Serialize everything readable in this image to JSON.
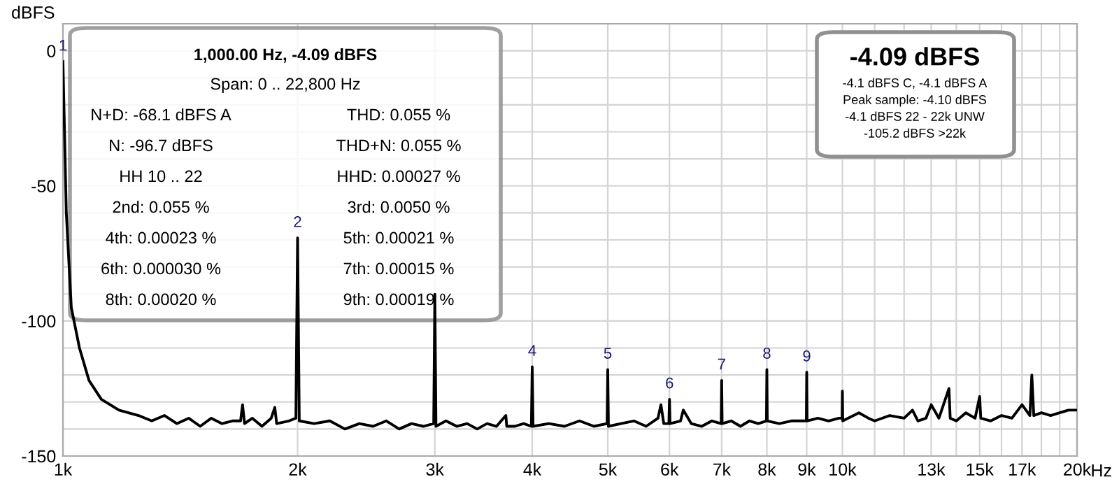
{
  "chart_data": {
    "type": "line",
    "ylabel": "dBFS",
    "x": [
      1000,
      1010,
      1025,
      1050,
      1080,
      1120,
      1180,
      1250,
      1300,
      1350,
      1400,
      1450,
      1500,
      1550,
      1600,
      1650,
      1690,
      1700,
      1710,
      1750,
      1800,
      1850,
      1870,
      1880,
      1950,
      1990,
      2000,
      2010,
      2100,
      2200,
      2300,
      2400,
      2500,
      2600,
      2700,
      2800,
      2900,
      2990,
      3000,
      3010,
      3100,
      3200,
      3300,
      3400,
      3500,
      3600,
      3700,
      3710,
      3800,
      3900,
      3990,
      4000,
      4010,
      4200,
      4400,
      4600,
      4800,
      4990,
      5000,
      5010,
      5200,
      5400,
      5600,
      5800,
      5850,
      5900,
      5990,
      6000,
      6010,
      6200,
      6250,
      6400,
      6600,
      6800,
      6990,
      7000,
      7010,
      7200,
      7400,
      7600,
      7800,
      7990,
      8000,
      8010,
      8300,
      8600,
      8990,
      9000,
      9010,
      9300,
      9600,
      9900,
      9990,
      10000,
      10010,
      10500,
      10800,
      11000,
      11500,
      12000,
      12300,
      12500,
      12800,
      13000,
      13300,
      13700,
      13750,
      14000,
      14400,
      14800,
      15000,
      15050,
      15500,
      16000,
      16500,
      17000,
      17400,
      17500,
      17600,
      18000,
      18500,
      19000,
      19500,
      20000
    ],
    "series": [
      {
        "color": "#000000",
        "values": [
          -4,
          -60,
          -95,
          -110,
          -122,
          -129,
          -133,
          -135,
          -137,
          -135,
          -138,
          -136,
          -139,
          -136,
          -138,
          -137,
          -137,
          -131,
          -138,
          -136,
          -139,
          -136,
          -132,
          -138,
          -137,
          -136,
          -69.3,
          -137,
          -138,
          -137,
          -140,
          -138,
          -139,
          -137,
          -140,
          -138,
          -139,
          -138,
          -90.1,
          -139,
          -137,
          -139,
          -138,
          -140,
          -138,
          -139,
          -135,
          -139,
          -139,
          -138,
          -139,
          -117,
          -139,
          -138,
          -139,
          -137,
          -139,
          -138,
          -118,
          -139,
          -138,
          -137,
          -139,
          -136,
          -131,
          -138,
          -138,
          -129,
          -138,
          -137,
          -133,
          -138,
          -139,
          -137,
          -138,
          -122,
          -138,
          -137,
          -139,
          -137,
          -138,
          -137,
          -118,
          -137,
          -138,
          -137,
          -137,
          -119,
          -137,
          -136,
          -137,
          -136,
          -136,
          -126,
          -137,
          -134,
          -136,
          -137,
          -135,
          -136,
          -133,
          -137,
          -136,
          -131,
          -136,
          -125,
          -136,
          -137,
          -134,
          -136,
          -128,
          -136,
          -137,
          -135,
          -136,
          -131,
          -135,
          -120,
          -135,
          -134,
          -135,
          -134,
          -133,
          -133
        ]
      }
    ],
    "xlim": [
      1000,
      20000
    ],
    "ylim": [
      -150,
      10
    ],
    "log": "x",
    "xticks": [
      {
        "value": 1000,
        "label": "1k"
      },
      {
        "value": 2000,
        "label": "2k"
      },
      {
        "value": 3000,
        "label": "3k"
      },
      {
        "value": 4000,
        "label": "4k"
      },
      {
        "value": 5000,
        "label": "5k"
      },
      {
        "value": 6000,
        "label": "6k"
      },
      {
        "value": 7000,
        "label": "7k"
      },
      {
        "value": 8000,
        "label": "8k"
      },
      {
        "value": 9000,
        "label": "9k"
      },
      {
        "value": 10000,
        "label": "10k"
      },
      {
        "value": 11000,
        "label": null
      },
      {
        "value": 12000,
        "label": null
      },
      {
        "value": 13000,
        "label": "13k"
      },
      {
        "value": 14000,
        "label": null
      },
      {
        "value": 15000,
        "label": "15k"
      },
      {
        "value": 16000,
        "label": null
      },
      {
        "value": 17000,
        "label": "17k"
      },
      {
        "value": 18000,
        "label": null
      },
      {
        "value": 19000,
        "label": null
      },
      {
        "value": 20000,
        "label": "20k"
      }
    ],
    "xlabel": "Hz",
    "yticks": [
      -150,
      {
        "value": -140,
        "label": null
      },
      {
        "value": -130,
        "label": null
      },
      {
        "value": -120,
        "label": null
      },
      {
        "value": -110,
        "label": null
      },
      -100,
      {
        "value": -90,
        "label": null
      },
      {
        "value": -80,
        "label": null
      },
      {
        "value": -70,
        "label": null
      },
      {
        "value": -60,
        "label": null
      },
      -50,
      {
        "value": -40,
        "label": null
      },
      {
        "value": -30,
        "label": null
      },
      {
        "value": -20,
        "label": null
      },
      {
        "value": -10,
        "label": null
      },
      0
    ],
    "grid": true,
    "annotations": [
      "1,000.00 Hz, -4.09 dBFS",
      "Span: 0 .. 22,800 Hz",
      "N+D: -68.1 dBFS A",
      "THD: 0.055 %",
      "N: -96.7 dBFS",
      "THD+N: 0.055 %",
      "HH 10 .. 22",
      "HHD: 0.00027 %",
      "2nd: 0.055 %",
      "3rd: 0.0050 %",
      "4th: 0.00023 %",
      "5th: 0.00021 %",
      "6th: 0.000030 %",
      "7th: 0.00015 %",
      "8th: 0.00020 %",
      "9th: 0.00019 %",
      "-4.09 dBFS",
      "-4.1 dBFS C, -4.1 dBFS A",
      "Peak sample: -4.10 dBFS",
      "-4.1 dBFS 22 - 22k UNW",
      "-105.2 dBFS >22k",
      {
        "text": "1",
        "x": 1000,
        "y": -4
      },
      {
        "text": "2",
        "x": 2000,
        "y": -69.3
      },
      {
        "text": "4",
        "x": 4000,
        "y": -117
      },
      {
        "text": "5",
        "x": 5000,
        "y": -118
      },
      {
        "text": "6",
        "x": 6000,
        "y": -129
      },
      {
        "text": "7",
        "x": 7000,
        "y": -122
      },
      {
        "text": "8",
        "x": 8000,
        "y": -118
      },
      {
        "text": "9",
        "x": 9000,
        "y": -119
      }
    ]
  }
}
